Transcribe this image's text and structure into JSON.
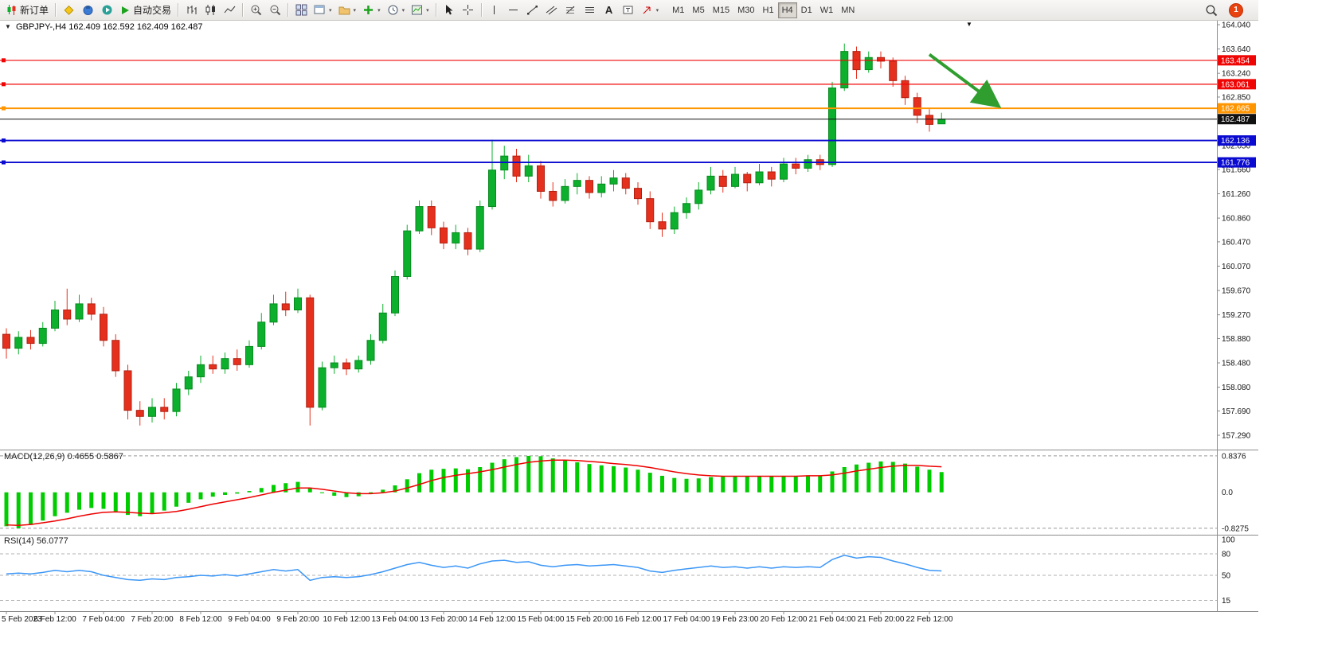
{
  "toolbar": {
    "new_order": "新订单",
    "autotrading": "自动交易",
    "text_tool": "A",
    "timeframes": [
      "M1",
      "M5",
      "M15",
      "M30",
      "H1",
      "H4",
      "D1",
      "W1",
      "MN"
    ],
    "active_timeframe": "H4",
    "notification_count": "1"
  },
  "chart": {
    "title": "GBPJPY-,H4  162.409 162.592 162.409 162.487"
  },
  "chart_data": {
    "type": "candlestick",
    "symbol": "GBPJPY-",
    "period": "H4",
    "open": 162.409,
    "high": 162.592,
    "low": 162.409,
    "close": 162.487,
    "colors": {
      "bull": "#0cb02c",
      "bull_edge": "#078a1f",
      "bear": "#e6301e",
      "bear_edge": "#b01f10",
      "macd_hist": "#00cc00",
      "macd_signal": "#ee0000",
      "rsi_line": "#3b96f7",
      "axis": "#8c8c8c"
    },
    "price_axis": [
      "164.040",
      "163.640",
      "163.240",
      "162.850",
      "162.450",
      "162.050",
      "161.660",
      "161.260",
      "160.860",
      "160.470",
      "160.070",
      "159.670",
      "159.270",
      "158.880",
      "158.480",
      "158.080",
      "157.690",
      "157.290"
    ],
    "time_labels": [
      {
        "i": 0,
        "t": "5 Feb 2023"
      },
      {
        "i": 4,
        "t": "6 Feb 12:00"
      },
      {
        "i": 8,
        "t": "7 Feb 04:00"
      },
      {
        "i": 12,
        "t": "7 Feb 20:00"
      },
      {
        "i": 16,
        "t": "8 Feb 12:00"
      },
      {
        "i": 20,
        "t": "9 Feb 04:00"
      },
      {
        "i": 24,
        "t": "9 Feb 20:00"
      },
      {
        "i": 28,
        "t": "10 Feb 12:00"
      },
      {
        "i": 32,
        "t": "13 Feb 04:00"
      },
      {
        "i": 36,
        "t": "13 Feb 20:00"
      },
      {
        "i": 40,
        "t": "14 Feb 12:00"
      },
      {
        "i": 44,
        "t": "15 Feb 04:00"
      },
      {
        "i": 48,
        "t": "15 Feb 20:00"
      },
      {
        "i": 52,
        "t": "16 Feb 12:00"
      },
      {
        "i": 56,
        "t": "17 Feb 04:00"
      },
      {
        "i": 60,
        "t": "19 Feb 23:00"
      },
      {
        "i": 64,
        "t": "20 Feb 12:00"
      },
      {
        "i": 68,
        "t": "21 Feb 04:00"
      },
      {
        "i": 72,
        "t": "21 Feb 20:00"
      },
      {
        "i": 76,
        "t": "22 Feb 12:00"
      }
    ],
    "candles": [
      [
        158.95,
        159.05,
        158.55,
        158.72
      ],
      [
        158.72,
        159.0,
        158.62,
        158.9
      ],
      [
        158.9,
        159.02,
        158.7,
        158.8
      ],
      [
        158.8,
        159.15,
        158.75,
        159.05
      ],
      [
        159.05,
        159.5,
        159.0,
        159.35
      ],
      [
        159.35,
        159.7,
        159.1,
        159.2
      ],
      [
        159.2,
        159.6,
        159.15,
        159.45
      ],
      [
        159.45,
        159.55,
        159.18,
        159.28
      ],
      [
        159.28,
        159.4,
        158.75,
        158.85
      ],
      [
        158.85,
        158.95,
        158.25,
        158.35
      ],
      [
        158.35,
        158.45,
        157.55,
        157.7
      ],
      [
        157.7,
        157.85,
        157.45,
        157.6
      ],
      [
        157.6,
        157.9,
        157.5,
        157.75
      ],
      [
        157.75,
        157.9,
        157.55,
        157.68
      ],
      [
        157.68,
        158.15,
        157.6,
        158.05
      ],
      [
        158.05,
        158.35,
        157.95,
        158.25
      ],
      [
        158.25,
        158.6,
        158.15,
        158.45
      ],
      [
        158.45,
        158.6,
        158.3,
        158.38
      ],
      [
        158.38,
        158.65,
        158.3,
        158.55
      ],
      [
        158.55,
        158.7,
        158.35,
        158.45
      ],
      [
        158.45,
        158.85,
        158.4,
        158.75
      ],
      [
        158.75,
        159.3,
        158.7,
        159.15
      ],
      [
        159.15,
        159.6,
        159.1,
        159.45
      ],
      [
        159.45,
        159.65,
        159.25,
        159.35
      ],
      [
        159.35,
        159.7,
        159.3,
        159.55
      ],
      [
        159.55,
        159.6,
        157.45,
        157.75
      ],
      [
        157.75,
        158.5,
        157.7,
        158.4
      ],
      [
        158.4,
        158.6,
        158.3,
        158.48
      ],
      [
        158.48,
        158.55,
        158.28,
        158.38
      ],
      [
        158.38,
        158.6,
        158.32,
        158.52
      ],
      [
        158.52,
        158.95,
        158.45,
        158.85
      ],
      [
        158.85,
        159.45,
        158.8,
        159.3
      ],
      [
        159.3,
        160.0,
        159.25,
        159.9
      ],
      [
        159.9,
        160.75,
        159.85,
        160.65
      ],
      [
        160.65,
        161.15,
        160.6,
        161.05
      ],
      [
        161.05,
        161.15,
        160.58,
        160.7
      ],
      [
        160.7,
        160.8,
        160.35,
        160.45
      ],
      [
        160.45,
        160.75,
        160.35,
        160.62
      ],
      [
        160.62,
        160.7,
        160.25,
        160.35
      ],
      [
        160.35,
        161.15,
        160.3,
        161.05
      ],
      [
        161.05,
        162.15,
        161.0,
        161.65
      ],
      [
        161.65,
        162.05,
        161.5,
        161.88
      ],
      [
        161.88,
        162.0,
        161.45,
        161.55
      ],
      [
        161.55,
        161.9,
        161.45,
        161.72
      ],
      [
        161.72,
        161.8,
        161.18,
        161.3
      ],
      [
        161.3,
        161.45,
        161.05,
        161.15
      ],
      [
        161.15,
        161.5,
        161.1,
        161.38
      ],
      [
        161.38,
        161.6,
        161.25,
        161.48
      ],
      [
        161.48,
        161.55,
        161.18,
        161.28
      ],
      [
        161.28,
        161.55,
        161.2,
        161.42
      ],
      [
        161.42,
        161.65,
        161.3,
        161.52
      ],
      [
        161.52,
        161.6,
        161.25,
        161.35
      ],
      [
        161.35,
        161.45,
        161.08,
        161.18
      ],
      [
        161.18,
        161.3,
        160.68,
        160.8
      ],
      [
        160.8,
        160.95,
        160.55,
        160.68
      ],
      [
        160.68,
        161.05,
        160.6,
        160.95
      ],
      [
        160.95,
        161.2,
        160.85,
        161.1
      ],
      [
        161.1,
        161.45,
        161.0,
        161.32
      ],
      [
        161.32,
        161.7,
        161.25,
        161.55
      ],
      [
        161.55,
        161.65,
        161.28,
        161.38
      ],
      [
        161.38,
        161.7,
        161.35,
        161.58
      ],
      [
        161.58,
        161.62,
        161.3,
        161.44
      ],
      [
        161.44,
        161.75,
        161.4,
        161.62
      ],
      [
        161.62,
        161.7,
        161.38,
        161.5
      ],
      [
        161.5,
        161.85,
        161.45,
        161.75
      ],
      [
        161.75,
        161.85,
        161.58,
        161.68
      ],
      [
        161.68,
        161.9,
        161.62,
        161.82
      ],
      [
        161.82,
        161.9,
        161.65,
        161.74
      ],
      [
        161.74,
        163.1,
        161.7,
        163.0
      ],
      [
        163.0,
        163.73,
        162.95,
        163.6
      ],
      [
        163.6,
        163.68,
        163.15,
        163.3
      ],
      [
        163.3,
        163.6,
        163.25,
        163.5
      ],
      [
        163.5,
        163.6,
        163.32,
        163.44
      ],
      [
        163.44,
        163.5,
        163.02,
        163.12
      ],
      [
        163.12,
        163.2,
        162.72,
        162.84
      ],
      [
        162.84,
        162.92,
        162.42,
        162.55
      ],
      [
        162.55,
        162.65,
        162.28,
        162.4
      ],
      [
        162.409,
        162.592,
        162.409,
        162.487
      ]
    ],
    "hlines": [
      {
        "price": 163.454,
        "label": "163.454",
        "color": "#f00505",
        "width": 1.2
      },
      {
        "price": 163.061,
        "label": "163.061",
        "color": "#f00505",
        "width": 1.2
      },
      {
        "price": 162.665,
        "label": "162.665",
        "color": "#ff9500",
        "width": 2
      },
      {
        "price": 162.487,
        "label": "162.487",
        "color": "#111111",
        "width": 1,
        "no_marker": true
      },
      {
        "price": 162.136,
        "label": "162.136",
        "color": "#0a0ad0",
        "width": 1.8
      },
      {
        "price": 161.776,
        "label": "161.776",
        "color": "#0a0ad0",
        "width": 1.8
      }
    ],
    "arrow": {
      "t1": 76,
      "p1": 163.55,
      "t2": 81.5,
      "p2": 162.73,
      "color": "#2f9e2f"
    },
    "macd": {
      "label": "MACD(12,26,9) 0.4655 0.5867",
      "value": 0.4655,
      "signal_value": 0.5867,
      "axis_labels": [
        {
          "v": 0.8376,
          "t": "0.8376"
        },
        {
          "v": 0,
          "t": "0.0"
        },
        {
          "v": -0.8275,
          "t": "-0.8275"
        }
      ],
      "max": 0.8376,
      "min": -0.8275,
      "histogram": [
        -0.78,
        -0.8275,
        -0.75,
        -0.65,
        -0.55,
        -0.47,
        -0.4,
        -0.36,
        -0.38,
        -0.44,
        -0.52,
        -0.55,
        -0.5,
        -0.42,
        -0.33,
        -0.24,
        -0.16,
        -0.1,
        -0.06,
        -0.03,
        0.03,
        0.1,
        0.17,
        0.21,
        0.24,
        0.1,
        -0.02,
        -0.08,
        -0.11,
        -0.09,
        -0.03,
        0.06,
        0.16,
        0.3,
        0.44,
        0.52,
        0.54,
        0.55,
        0.53,
        0.58,
        0.68,
        0.76,
        0.81,
        0.8376,
        0.83,
        0.78,
        0.73,
        0.69,
        0.65,
        0.62,
        0.6,
        0.57,
        0.52,
        0.45,
        0.38,
        0.33,
        0.31,
        0.32,
        0.35,
        0.36,
        0.37,
        0.36,
        0.37,
        0.37,
        0.38,
        0.38,
        0.39,
        0.38,
        0.48,
        0.58,
        0.64,
        0.68,
        0.71,
        0.7,
        0.66,
        0.59,
        0.52,
        0.4655
      ],
      "signal": [
        -0.75,
        -0.76,
        -0.74,
        -0.7,
        -0.66,
        -0.61,
        -0.55,
        -0.5,
        -0.46,
        -0.45,
        -0.46,
        -0.48,
        -0.49,
        -0.47,
        -0.44,
        -0.39,
        -0.33,
        -0.27,
        -0.22,
        -0.17,
        -0.12,
        -0.06,
        0.0,
        0.05,
        0.1,
        0.1,
        0.07,
        0.03,
        -0.01,
        -0.03,
        -0.03,
        -0.01,
        0.03,
        0.1,
        0.18,
        0.27,
        0.34,
        0.39,
        0.43,
        0.47,
        0.52,
        0.58,
        0.64,
        0.69,
        0.72,
        0.74,
        0.74,
        0.73,
        0.71,
        0.69,
        0.66,
        0.64,
        0.61,
        0.57,
        0.52,
        0.47,
        0.43,
        0.4,
        0.38,
        0.37,
        0.37,
        0.37,
        0.37,
        0.37,
        0.37,
        0.37,
        0.38,
        0.38,
        0.4,
        0.44,
        0.49,
        0.53,
        0.57,
        0.6,
        0.62,
        0.62,
        0.6,
        0.5867
      ]
    },
    "rsi": {
      "label": "RSI(14) 56.0777",
      "value": 56.0777,
      "levels": [
        {
          "v": 100,
          "t": "100",
          "line": false
        },
        {
          "v": 80,
          "t": "80",
          "line": true
        },
        {
          "v": 50,
          "t": "50",
          "line": true
        },
        {
          "v": 15,
          "t": "15",
          "line": true
        }
      ],
      "values": [
        52,
        53,
        52,
        54,
        57,
        55,
        57,
        55,
        50,
        47,
        44,
        43,
        45,
        44,
        47,
        48,
        50,
        49,
        51,
        49,
        52,
        55,
        58,
        56,
        58,
        43,
        47,
        48,
        47,
        48,
        51,
        55,
        60,
        65,
        68,
        64,
        61,
        63,
        60,
        66,
        70,
        71,
        68,
        69,
        64,
        62,
        64,
        65,
        63,
        64,
        65,
        63,
        61,
        56,
        54,
        57,
        59,
        61,
        63,
        61,
        62,
        60,
        62,
        60,
        62,
        61,
        62,
        61,
        72,
        78,
        74,
        76,
        75,
        70,
        66,
        61,
        57,
        56.08
      ]
    }
  }
}
